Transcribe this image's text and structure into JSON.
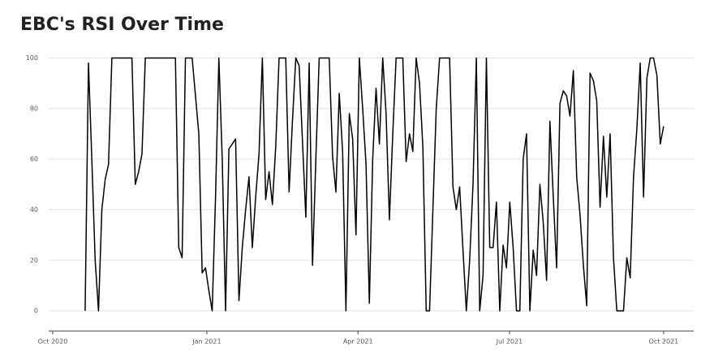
{
  "chart_data": {
    "type": "line",
    "title": "EBC's RSI Over Time",
    "values": [
      0,
      98,
      60,
      20,
      0,
      40,
      52,
      58,
      100,
      100,
      100,
      100,
      100,
      100,
      100,
      50,
      55,
      62,
      100,
      100,
      100,
      100,
      100,
      100,
      100,
      100,
      100,
      100,
      25,
      21,
      100,
      100,
      100,
      85,
      70,
      15,
      17,
      8,
      0,
      45,
      100,
      60,
      0,
      64,
      66,
      68,
      4,
      25,
      40,
      53,
      25,
      45,
      62,
      100,
      44,
      55,
      42,
      65,
      100,
      100,
      100,
      47,
      75,
      100,
      97,
      67,
      37,
      98,
      18,
      60,
      100,
      100,
      100,
      100,
      61,
      47,
      86,
      63,
      0,
      78,
      68,
      30,
      100,
      80,
      58,
      3,
      60,
      88,
      66,
      100,
      78,
      36,
      70,
      100,
      100,
      100,
      59,
      70,
      63,
      100,
      90,
      65,
      0,
      0,
      40,
      80,
      100,
      100,
      100,
      100,
      49,
      40,
      49,
      24,
      0,
      20,
      50,
      100,
      0,
      14,
      100,
      25,
      25,
      43,
      0,
      26,
      17,
      43,
      25,
      0,
      0,
      60,
      70,
      0,
      24,
      14,
      50,
      35,
      12,
      75,
      45,
      17,
      82,
      87,
      85,
      77,
      95,
      53,
      38,
      18,
      2,
      94,
      91,
      83,
      41,
      69,
      45,
      70,
      21,
      0,
      0,
      0,
      21,
      13,
      53,
      72,
      98,
      45,
      92,
      100,
      100,
      93,
      66,
      73
    ],
    "color": "#000000",
    "xlim": [
      -10.9,
      182
    ],
    "xticks": [
      {
        "value": -9.7,
        "label": "Oct 2020"
      },
      {
        "value": 36.4,
        "label": "Jan 2021"
      },
      {
        "value": 81.6,
        "label": "Apr 2021"
      },
      {
        "value": 126.9,
        "label": "Jul 2021"
      },
      {
        "value": 173,
        "label": "Oct 2021"
      }
    ],
    "ylim": [
      -8,
      104
    ],
    "yticks": [
      0,
      20,
      40,
      60,
      80,
      100
    ],
    "grid": true
  }
}
